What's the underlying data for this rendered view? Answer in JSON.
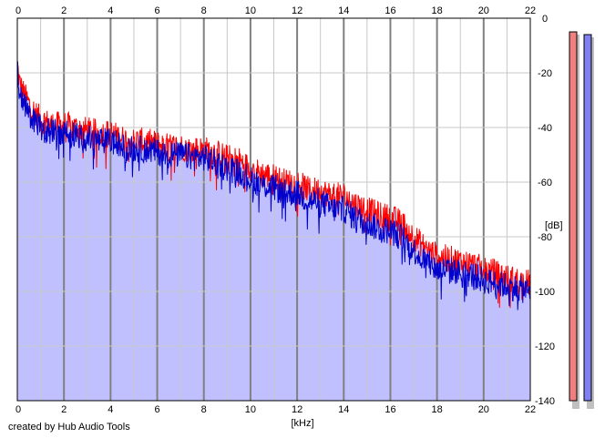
{
  "chart_data": {
    "type": "area",
    "xlabel": "[kHz]",
    "ylabel": "[dB]",
    "xlim": [
      0,
      22
    ],
    "ylim": [
      -140,
      0
    ],
    "x_ticks": [
      0,
      2,
      4,
      6,
      8,
      10,
      12,
      14,
      16,
      18,
      20,
      22
    ],
    "y_ticks": [
      0,
      -20,
      -40,
      -60,
      -80,
      -100,
      -120,
      -140
    ],
    "grid": true,
    "series": [
      {
        "color": "#ff0000",
        "x": [
          0,
          0.1,
          0.3,
          0.6,
          1,
          1.5,
          2,
          2.5,
          3,
          3.5,
          4,
          4.5,
          5,
          5.5,
          6,
          6.5,
          7,
          7.5,
          8,
          8.5,
          9,
          9.5,
          10,
          10.5,
          11,
          11.5,
          12,
          12.5,
          13,
          13.5,
          14,
          14.5,
          15,
          15.5,
          16,
          16.5,
          17,
          17.5,
          18,
          18.5,
          19,
          19.5,
          20,
          20.5,
          21,
          21.5,
          22
        ],
        "values": [
          -17,
          -24,
          -28,
          -33,
          -37,
          -39,
          -39,
          -40,
          -41,
          -42,
          -42,
          -44,
          -45,
          -45,
          -46,
          -47,
          -47,
          -48,
          -48,
          -49,
          -51,
          -52,
          -55,
          -57,
          -58,
          -60,
          -60,
          -63,
          -63,
          -65,
          -65,
          -68,
          -70,
          -72,
          -73,
          -75,
          -80,
          -84,
          -87,
          -88,
          -89,
          -90,
          -92,
          -93,
          -95,
          -96,
          -97
        ]
      },
      {
        "color": "#0000cc",
        "x": [
          0,
          0.1,
          0.3,
          0.6,
          1,
          1.5,
          2,
          2.5,
          3,
          3.5,
          4,
          4.5,
          5,
          5.5,
          6,
          6.5,
          7,
          7.5,
          8,
          8.5,
          9,
          9.5,
          10,
          10.5,
          11,
          11.5,
          12,
          12.5,
          13,
          13.5,
          14,
          14.5,
          15,
          15.5,
          16,
          16.5,
          17,
          17.5,
          18,
          18.5,
          19,
          19.5,
          20,
          20.5,
          21,
          21.5,
          22
        ],
        "values": [
          -17,
          -27,
          -31,
          -36,
          -40,
          -42,
          -42,
          -43,
          -44,
          -45,
          -45,
          -47,
          -48,
          -48,
          -49,
          -50,
          -50,
          -51,
          -51,
          -53,
          -55,
          -56,
          -59,
          -61,
          -62,
          -64,
          -64,
          -67,
          -67,
          -70,
          -70,
          -73,
          -75,
          -77,
          -78,
          -80,
          -85,
          -89,
          -92,
          -92,
          -93,
          -94,
          -96,
          -97,
          -98,
          -99,
          -100
        ]
      }
    ],
    "fill_color": "#c0c0ff",
    "meters": [
      {
        "color": "#f08080",
        "value": -5
      },
      {
        "color": "#8080f0",
        "value": -6
      }
    ]
  },
  "credit": "created by Hub Audio Tools"
}
